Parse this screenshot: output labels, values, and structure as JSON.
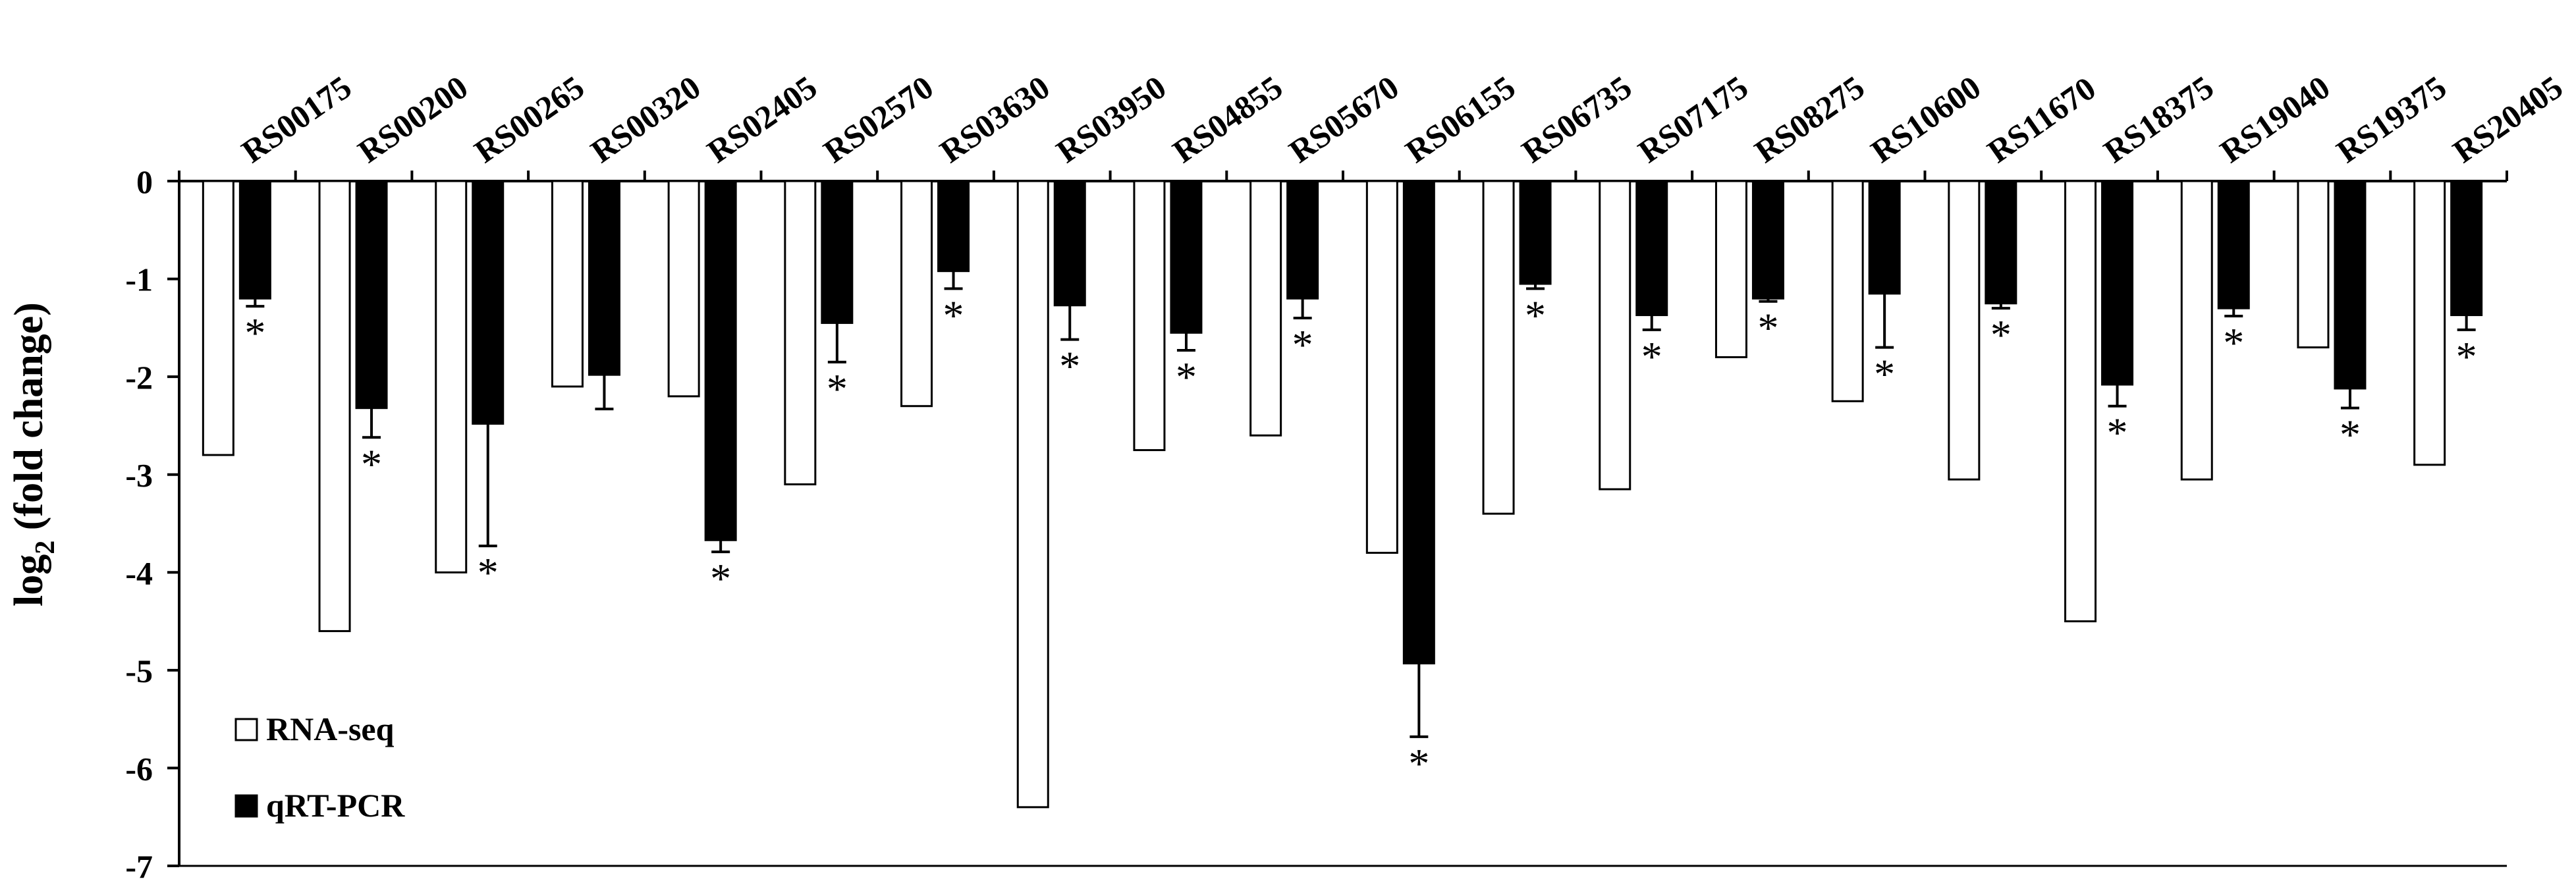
{
  "chart_data": {
    "type": "bar",
    "categories": [
      "RS00175",
      "RS00200",
      "RS00265",
      "RS00320",
      "RS02405",
      "RS02570",
      "RS03630",
      "RS03950",
      "RS04855",
      "RS05670",
      "RS06155",
      "RS06735",
      "RS07175",
      "RS08275",
      "RS10600",
      "RS11670",
      "RS18375",
      "RS19040",
      "RS19375",
      "RS20405"
    ],
    "series": [
      {
        "name": "RNA-seq",
        "color": "#ffffff",
        "stroke": "#000000",
        "values": [
          -2.8,
          -4.6,
          -4.0,
          -2.1,
          -2.2,
          -3.1,
          -2.3,
          -6.4,
          -2.75,
          -2.6,
          -3.8,
          -3.4,
          -3.15,
          -1.8,
          -2.25,
          -3.05,
          -4.5,
          -3.05,
          -1.7,
          -2.9
        ]
      },
      {
        "name": "qRT-PCR",
        "color": "#000000",
        "values": [
          -1.2,
          -2.32,
          -2.48,
          -1.98,
          -3.67,
          -1.45,
          -0.92,
          -1.27,
          -1.55,
          -1.2,
          -4.93,
          -1.05,
          -1.37,
          -1.2,
          -1.15,
          -1.25,
          -2.08,
          -1.3,
          -2.12,
          -1.37
        ],
        "error": [
          0.08,
          0.3,
          1.25,
          0.35,
          0.12,
          0.4,
          0.18,
          0.35,
          0.18,
          0.2,
          0.75,
          0.05,
          0.15,
          0.03,
          0.55,
          0.05,
          0.22,
          0.08,
          0.2,
          0.15
        ],
        "significant": [
          true,
          true,
          true,
          false,
          true,
          true,
          true,
          true,
          true,
          true,
          true,
          true,
          true,
          true,
          true,
          true,
          true,
          true,
          true,
          true
        ]
      }
    ],
    "significance_mark": "*",
    "ylim": [
      -7,
      0
    ],
    "yticks": [
      0,
      -1,
      -2,
      -3,
      -4,
      -5,
      -6,
      -7
    ],
    "ylabel": {
      "main": "log",
      "sub": "2",
      "rest": " (fold change)"
    },
    "xaxis_position": "top",
    "legend_position": "bottom-left",
    "grid": false
  }
}
